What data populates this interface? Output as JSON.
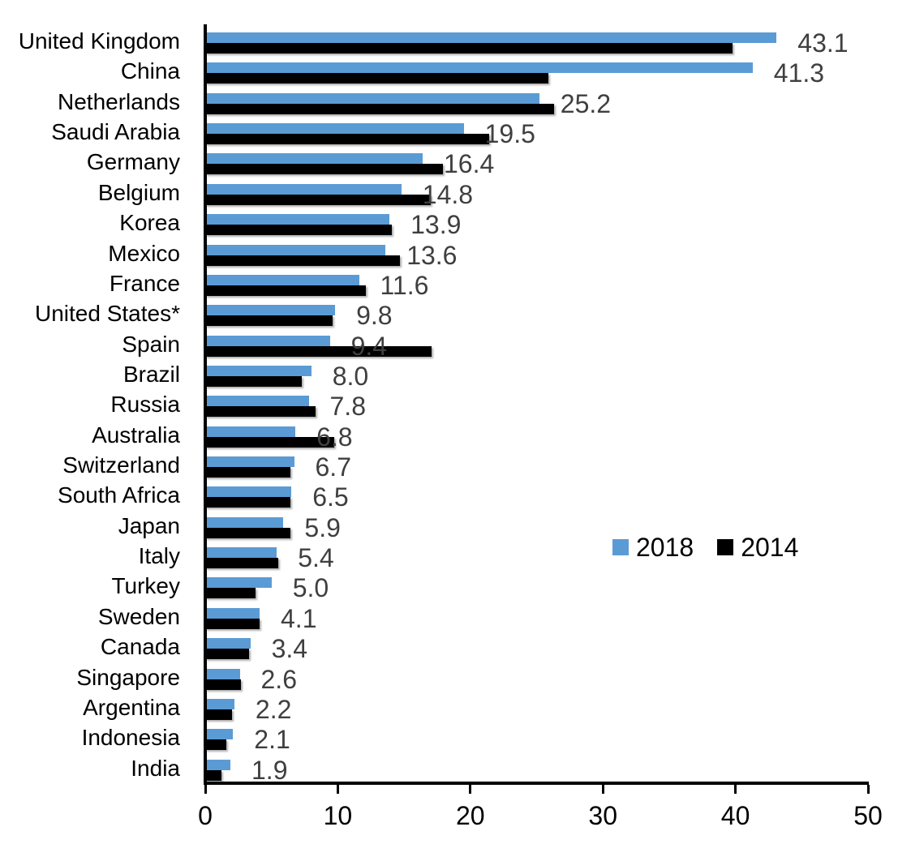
{
  "figure": {
    "background": "#ffffff",
    "axis_color": "#000000",
    "value_label_color": "#3f3f3f"
  },
  "chart_data": {
    "type": "bar",
    "orientation": "horizontal",
    "title": "",
    "xlabel": "",
    "ylabel": "",
    "xlim": [
      0,
      50
    ],
    "x_ticks": [
      0,
      10,
      20,
      30,
      40,
      50
    ],
    "grid": false,
    "legend_position": "center-right",
    "categories": [
      "United Kingdom",
      "China",
      "Netherlands",
      "Saudi Arabia",
      "Germany",
      "Belgium",
      "Korea",
      "Mexico",
      "France",
      "United States*",
      "Spain",
      "Brazil",
      "Russia",
      "Australia",
      "Switzerland",
      "South Africa",
      "Japan",
      "Italy",
      "Turkey",
      "Sweden",
      "Canada",
      "Singapore",
      "Argentina",
      "Indonesia",
      "India"
    ],
    "series": [
      {
        "name": "2018",
        "color": "#5b9bd5",
        "values": [
          43.1,
          41.3,
          25.2,
          19.5,
          16.4,
          14.8,
          13.9,
          13.6,
          11.6,
          9.8,
          9.4,
          8.0,
          7.8,
          6.8,
          6.7,
          6.5,
          5.9,
          5.4,
          5.0,
          4.1,
          3.4,
          2.6,
          2.2,
          2.1,
          1.9
        ]
      },
      {
        "name": "2014",
        "color": "#000000",
        "values": [
          39.8,
          25.9,
          26.3,
          21.4,
          17.9,
          17.0,
          14.1,
          14.7,
          12.1,
          9.6,
          17.1,
          7.3,
          8.3,
          9.7,
          6.4,
          6.4,
          6.4,
          5.5,
          3.8,
          4.1,
          3.3,
          2.7,
          2.0,
          1.6,
          1.2
        ]
      }
    ],
    "data_labels": [
      "43.1",
      "41.3",
      "25.2",
      "19.5",
      "16.4",
      "14.8",
      "13.9",
      "13.6",
      "11.6",
      "9.8",
      "9.4",
      "8.0",
      "7.8",
      "6.8",
      "6.7",
      "6.5",
      "5.9",
      "5.4",
      "5.0",
      "4.1",
      "3.4",
      "2.6",
      "2.2",
      "2.1",
      "1.9"
    ],
    "data_labels_series": "2018"
  }
}
